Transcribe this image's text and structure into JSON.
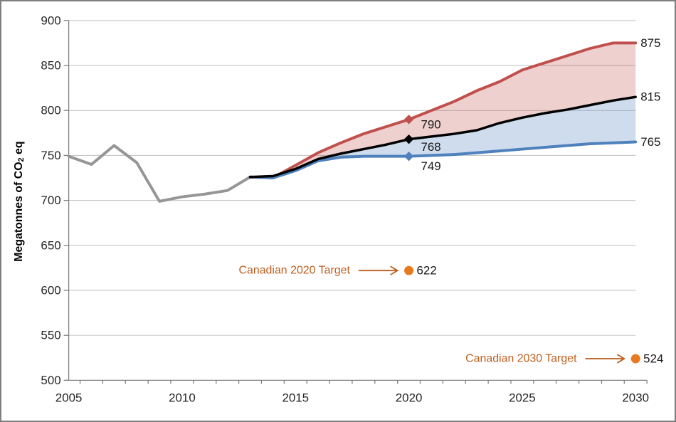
{
  "chart_data": {
    "type": "line",
    "title": "",
    "ylabel_prefix": "Megatonnes of CO",
    "ylabel_sub": "2",
    "ylabel_suffix": " eq",
    "xlim": [
      2005,
      2030
    ],
    "ylim": [
      500,
      900
    ],
    "x_tick_labels": [
      "2005",
      "2010",
      "2015",
      "2020",
      "2025",
      "2030"
    ],
    "x_tick_years": [
      2005,
      2010,
      2015,
      2020,
      2025,
      2030
    ],
    "y_tick_values": [
      500,
      550,
      600,
      650,
      700,
      750,
      800,
      850,
      900
    ],
    "grid": "horizontal",
    "legend": "none",
    "series": [
      {
        "name": "historical-emissions",
        "color": "#969696",
        "width": 4,
        "x": [
          2005,
          2006,
          2007,
          2008,
          2009,
          2010,
          2011,
          2012,
          2013
        ],
        "values": [
          749,
          740,
          761,
          742,
          699,
          704,
          707,
          711,
          726
        ]
      },
      {
        "name": "high-scenario",
        "color": "#C0504D",
        "width": 4,
        "x": [
          2013,
          2014,
          2015,
          2016,
          2017,
          2018,
          2019,
          2020,
          2021,
          2022,
          2023,
          2024,
          2025,
          2026,
          2027,
          2028,
          2029,
          2030
        ],
        "values": [
          726,
          725,
          739,
          753,
          764,
          774,
          782,
          790,
          800,
          810,
          822,
          832,
          845,
          853,
          861,
          869,
          875,
          875
        ]
      },
      {
        "name": "central-scenario",
        "color": "#000000",
        "width": 3.5,
        "x": [
          2013,
          2014,
          2015,
          2016,
          2017,
          2018,
          2019,
          2020,
          2021,
          2022,
          2023,
          2024,
          2025,
          2026,
          2027,
          2028,
          2029,
          2030
        ],
        "values": [
          726,
          727,
          735,
          746,
          752,
          757,
          762,
          768,
          771,
          774,
          778,
          786,
          792,
          797,
          801,
          806,
          811,
          815
        ]
      },
      {
        "name": "low-scenario",
        "color": "#4F81BD",
        "width": 4,
        "x": [
          2013,
          2014,
          2015,
          2016,
          2017,
          2018,
          2019,
          2020,
          2021,
          2022,
          2023,
          2024,
          2025,
          2026,
          2027,
          2028,
          2029,
          2030
        ],
        "values": [
          726,
          725,
          733,
          744,
          748,
          749,
          749,
          749,
          750,
          751,
          753,
          755,
          757,
          759,
          761,
          763,
          764,
          765
        ]
      }
    ],
    "bands": [
      {
        "name": "high-band",
        "upper": "high-scenario",
        "lower": "central-scenario",
        "color": "rgba(192,80,77,0.27)"
      },
      {
        "name": "low-band",
        "upper": "central-scenario",
        "lower": "low-scenario",
        "color": "rgba(79,129,189,0.28)"
      }
    ],
    "markers_2020": [
      {
        "series": "high-scenario",
        "year": 2020,
        "value": 790,
        "label": "790",
        "color": "#C0504D"
      },
      {
        "series": "central-scenario",
        "year": 2020,
        "value": 768,
        "label": "768",
        "color": "#000000"
      },
      {
        "series": "low-scenario",
        "year": 2020,
        "value": 749,
        "label": "749",
        "color": "#4F81BD"
      }
    ],
    "end_labels_2030": [
      {
        "series": "high-scenario",
        "value": 875,
        "label": "875"
      },
      {
        "series": "central-scenario",
        "value": 815,
        "label": "815"
      },
      {
        "series": "low-scenario",
        "value": 765,
        "label": "765"
      }
    ],
    "targets": [
      {
        "label": "Canadian 2020 Target",
        "year": 2020,
        "value": 622,
        "value_label": "622"
      },
      {
        "label": "Canadian 2030 Target",
        "year": 2030,
        "value": 524,
        "value_label": "524"
      }
    ],
    "colors": {
      "grid": "#BFBFBF",
      "axis": "#808080",
      "tick_text": "#262626",
      "label_text": "#1A1A1A",
      "target_text": "#BE5E1E",
      "target_arrow": "#BE5E1E",
      "target_dot": "#E8791E"
    }
  }
}
